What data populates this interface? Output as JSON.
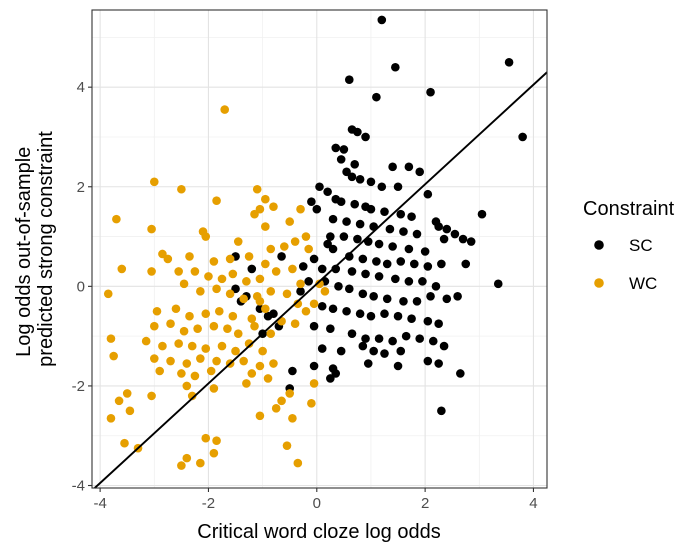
{
  "chart_data": {
    "type": "scatter",
    "xlabel": "Critical word cloze log odds",
    "ylabel_lines": [
      "Log odds out-of-sample",
      "predicted strong constraint"
    ],
    "xlim": [
      -4.15,
      4.25
    ],
    "ylim": [
      -4.05,
      5.55
    ],
    "x_ticks": [
      -4,
      -2,
      0,
      2,
      4
    ],
    "x_tick_labels": [
      "-4",
      "-2",
      "0",
      "2",
      "4"
    ],
    "y_ticks": [
      -4,
      -2,
      0,
      2,
      4
    ],
    "y_tick_labels": [
      "-4",
      "-2",
      "0",
      "2",
      "4"
    ],
    "grid": true,
    "legend": {
      "title": "Constraint",
      "position": "right",
      "entries": [
        {
          "label": "SC",
          "color": "#000000"
        },
        {
          "label": "WC",
          "color": "#E69F00"
        }
      ]
    },
    "fit_line": {
      "slope": 1.0,
      "intercept": 0.05
    },
    "series": [
      {
        "name": "SC",
        "color": "#000000",
        "points": [
          [
            1.2,
            5.35
          ],
          [
            1.45,
            4.4
          ],
          [
            3.55,
            4.5
          ],
          [
            0.6,
            4.15
          ],
          [
            2.1,
            3.9
          ],
          [
            1.1,
            3.8
          ],
          [
            3.8,
            3.0
          ],
          [
            0.65,
            3.15
          ],
          [
            0.75,
            3.1
          ],
          [
            0.9,
            3.0
          ],
          [
            0.35,
            2.78
          ],
          [
            0.5,
            2.75
          ],
          [
            0.45,
            2.55
          ],
          [
            0.7,
            2.45
          ],
          [
            1.4,
            2.4
          ],
          [
            1.7,
            2.4
          ],
          [
            1.9,
            2.3
          ],
          [
            0.55,
            2.3
          ],
          [
            0.65,
            2.2
          ],
          [
            0.8,
            2.15
          ],
          [
            1.0,
            2.1
          ],
          [
            1.2,
            2.0
          ],
          [
            1.5,
            2.0
          ],
          [
            2.05,
            1.85
          ],
          [
            0.2,
            1.9
          ],
          [
            0.35,
            1.75
          ],
          [
            0.45,
            1.7
          ],
          [
            0.7,
            1.65
          ],
          [
            0.9,
            1.6
          ],
          [
            1.0,
            1.55
          ],
          [
            1.25,
            1.5
          ],
          [
            1.55,
            1.45
          ],
          [
            1.75,
            1.4
          ],
          [
            2.2,
            1.3
          ],
          [
            0.3,
            1.35
          ],
          [
            0.55,
            1.3
          ],
          [
            0.8,
            1.25
          ],
          [
            1.05,
            1.2
          ],
          [
            1.35,
            1.15
          ],
          [
            1.6,
            1.1
          ],
          [
            1.85,
            1.05
          ],
          [
            2.25,
            1.2
          ],
          [
            2.4,
            1.15
          ],
          [
            0.25,
            1.0
          ],
          [
            0.5,
            1.0
          ],
          [
            0.75,
            0.95
          ],
          [
            0.95,
            0.9
          ],
          [
            1.15,
            0.85
          ],
          [
            1.4,
            0.8
          ],
          [
            1.7,
            0.75
          ],
          [
            2.0,
            0.7
          ],
          [
            2.35,
            0.95
          ],
          [
            2.55,
            1.05
          ],
          [
            2.7,
            0.95
          ],
          [
            2.85,
            0.9
          ],
          [
            3.05,
            1.45
          ],
          [
            0.3,
            0.75
          ],
          [
            0.6,
            0.6
          ],
          [
            0.85,
            0.55
          ],
          [
            1.1,
            0.5
          ],
          [
            1.3,
            0.45
          ],
          [
            1.55,
            0.5
          ],
          [
            1.8,
            0.45
          ],
          [
            2.05,
            0.4
          ],
          [
            2.3,
            0.45
          ],
          [
            2.75,
            0.45
          ],
          [
            3.35,
            0.05
          ],
          [
            0.35,
            0.35
          ],
          [
            0.65,
            0.3
          ],
          [
            0.9,
            0.25
          ],
          [
            1.15,
            0.2
          ],
          [
            1.45,
            0.15
          ],
          [
            1.7,
            0.1
          ],
          [
            1.95,
            0.1
          ],
          [
            2.2,
            0.0
          ],
          [
            0.15,
            0.1
          ],
          [
            0.4,
            0.0
          ],
          [
            0.6,
            -0.05
          ],
          [
            0.85,
            -0.15
          ],
          [
            1.05,
            -0.2
          ],
          [
            1.3,
            -0.25
          ],
          [
            1.6,
            -0.3
          ],
          [
            1.85,
            -0.3
          ],
          [
            2.1,
            -0.2
          ],
          [
            2.4,
            -0.25
          ],
          [
            2.6,
            -0.2
          ],
          [
            0.1,
            -0.4
          ],
          [
            0.3,
            -0.45
          ],
          [
            0.55,
            -0.5
          ],
          [
            0.8,
            -0.55
          ],
          [
            1.0,
            -0.6
          ],
          [
            1.25,
            -0.55
          ],
          [
            1.5,
            -0.6
          ],
          [
            1.75,
            -0.65
          ],
          [
            2.05,
            -0.7
          ],
          [
            2.25,
            -0.75
          ],
          [
            -0.05,
            -0.8
          ],
          [
            0.25,
            -0.85
          ],
          [
            0.65,
            -0.95
          ],
          [
            0.9,
            -1.05
          ],
          [
            1.15,
            -1.05
          ],
          [
            1.4,
            -1.1
          ],
          [
            1.65,
            -1.0
          ],
          [
            1.9,
            -1.05
          ],
          [
            2.15,
            -1.1
          ],
          [
            2.35,
            -1.2
          ],
          [
            0.1,
            -1.25
          ],
          [
            0.45,
            -1.3
          ],
          [
            0.85,
            -1.2
          ],
          [
            1.05,
            -1.3
          ],
          [
            1.25,
            -1.35
          ],
          [
            1.55,
            -1.3
          ],
          [
            2.05,
            -1.5
          ],
          [
            2.25,
            -1.55
          ],
          [
            0.95,
            -1.55
          ],
          [
            1.5,
            -1.6
          ],
          [
            0.3,
            -1.65
          ],
          [
            2.65,
            -1.75
          ],
          [
            0.25,
            -1.85
          ],
          [
            -0.45,
            -1.7
          ],
          [
            -0.5,
            -2.05
          ],
          [
            -0.05,
            -1.6
          ],
          [
            0.35,
            -1.75
          ],
          [
            2.3,
            -2.5
          ],
          [
            -1.5,
            0.6
          ],
          [
            -1.2,
            0.35
          ],
          [
            -1.5,
            -0.05
          ],
          [
            -1.3,
            -0.2
          ],
          [
            -1.4,
            -0.3
          ],
          [
            -1.05,
            -0.45
          ],
          [
            -0.9,
            -0.6
          ],
          [
            -1.0,
            -0.95
          ],
          [
            -0.7,
            -0.8
          ],
          [
            -0.8,
            -0.55
          ],
          [
            -0.3,
            -0.1
          ],
          [
            -0.15,
            0.1
          ],
          [
            -0.25,
            0.4
          ],
          [
            -0.65,
            0.6
          ],
          [
            -0.1,
            1.7
          ],
          [
            -0.05,
            0.55
          ],
          [
            0.1,
            0.35
          ],
          [
            0.2,
            0.85
          ],
          [
            0.0,
            1.55
          ],
          [
            0.05,
            2.0
          ]
        ]
      },
      {
        "name": "WC",
        "color": "#E69F00",
        "points": [
          [
            -1.7,
            3.55
          ],
          [
            -3.0,
            2.1
          ],
          [
            -2.5,
            1.95
          ],
          [
            -1.85,
            1.72
          ],
          [
            -1.1,
            1.95
          ],
          [
            -0.95,
            1.75
          ],
          [
            -0.8,
            1.6
          ],
          [
            -1.05,
            1.55
          ],
          [
            -1.15,
            1.45
          ],
          [
            -0.3,
            1.55
          ],
          [
            -3.7,
            1.35
          ],
          [
            -2.1,
            1.1
          ],
          [
            -3.05,
            1.15
          ],
          [
            -2.05,
            1.0
          ],
          [
            -1.45,
            0.9
          ],
          [
            -0.95,
            1.2
          ],
          [
            -0.5,
            1.3
          ],
          [
            -0.2,
            1.0
          ],
          [
            -2.85,
            0.65
          ],
          [
            -2.75,
            0.55
          ],
          [
            -2.35,
            0.6
          ],
          [
            -1.9,
            0.5
          ],
          [
            -1.6,
            0.55
          ],
          [
            -1.25,
            0.6
          ],
          [
            -0.85,
            0.75
          ],
          [
            -0.6,
            0.8
          ],
          [
            -0.4,
            0.9
          ],
          [
            -0.15,
            0.75
          ],
          [
            -3.6,
            0.35
          ],
          [
            -3.05,
            0.3
          ],
          [
            -2.55,
            0.3
          ],
          [
            -2.25,
            0.3
          ],
          [
            -2.0,
            0.2
          ],
          [
            -1.75,
            0.15
          ],
          [
            -1.55,
            0.25
          ],
          [
            -1.3,
            0.1
          ],
          [
            -1.05,
            0.15
          ],
          [
            -0.75,
            0.3
          ],
          [
            -0.45,
            0.35
          ],
          [
            -0.3,
            0.05
          ],
          [
            -3.85,
            -0.15
          ],
          [
            -2.45,
            0.05
          ],
          [
            -2.15,
            -0.1
          ],
          [
            -1.85,
            -0.05
          ],
          [
            -1.6,
            -0.15
          ],
          [
            -1.35,
            -0.25
          ],
          [
            -1.1,
            -0.2
          ],
          [
            -0.85,
            -0.1
          ],
          [
            -0.55,
            -0.15
          ],
          [
            -0.35,
            -0.35
          ],
          [
            -2.95,
            -0.5
          ],
          [
            -2.6,
            -0.45
          ],
          [
            -2.35,
            -0.6
          ],
          [
            -2.05,
            -0.55
          ],
          [
            -1.8,
            -0.5
          ],
          [
            -1.55,
            -0.6
          ],
          [
            -1.2,
            -0.65
          ],
          [
            -0.95,
            -0.45
          ],
          [
            -0.65,
            -0.7
          ],
          [
            -3.0,
            -0.8
          ],
          [
            -2.7,
            -0.75
          ],
          [
            -2.45,
            -0.9
          ],
          [
            -2.2,
            -0.85
          ],
          [
            -1.9,
            -0.8
          ],
          [
            -1.65,
            -0.85
          ],
          [
            -1.45,
            -0.95
          ],
          [
            -1.15,
            -0.8
          ],
          [
            -0.85,
            -0.95
          ],
          [
            -3.8,
            -1.05
          ],
          [
            -3.15,
            -1.1
          ],
          [
            -2.85,
            -1.2
          ],
          [
            -2.55,
            -1.15
          ],
          [
            -2.3,
            -1.2
          ],
          [
            -2.05,
            -1.25
          ],
          [
            -1.75,
            -1.2
          ],
          [
            -1.5,
            -1.3
          ],
          [
            -1.25,
            -1.15
          ],
          [
            -1.0,
            -1.3
          ],
          [
            -3.75,
            -1.4
          ],
          [
            -3.0,
            -1.45
          ],
          [
            -2.7,
            -1.5
          ],
          [
            -2.4,
            -1.55
          ],
          [
            -2.15,
            -1.45
          ],
          [
            -1.85,
            -1.5
          ],
          [
            -1.6,
            -1.55
          ],
          [
            -1.35,
            -1.5
          ],
          [
            -1.05,
            -1.6
          ],
          [
            -0.8,
            -1.55
          ],
          [
            -2.9,
            -1.7
          ],
          [
            -2.5,
            -1.75
          ],
          [
            -2.25,
            -1.8
          ],
          [
            -1.95,
            -1.7
          ],
          [
            -1.2,
            -1.75
          ],
          [
            -0.9,
            -1.85
          ],
          [
            -3.65,
            -2.3
          ],
          [
            -3.45,
            -2.5
          ],
          [
            -3.5,
            -2.15
          ],
          [
            -3.05,
            -2.2
          ],
          [
            -2.4,
            -2.0
          ],
          [
            -2.3,
            -2.2
          ],
          [
            -1.9,
            -2.05
          ],
          [
            -1.3,
            -1.95
          ],
          [
            -0.5,
            -2.15
          ],
          [
            -0.75,
            -2.45
          ],
          [
            -0.45,
            -2.65
          ],
          [
            -0.1,
            -2.35
          ],
          [
            -3.8,
            -2.65
          ],
          [
            -1.05,
            -2.6
          ],
          [
            -0.65,
            -2.3
          ],
          [
            -3.55,
            -3.15
          ],
          [
            -3.3,
            -3.25
          ],
          [
            -2.05,
            -3.05
          ],
          [
            -1.85,
            -3.1
          ],
          [
            -2.4,
            -3.45
          ],
          [
            -2.5,
            -3.6
          ],
          [
            -2.15,
            -3.55
          ],
          [
            -1.9,
            -3.35
          ],
          [
            -0.55,
            -3.2
          ],
          [
            -0.35,
            -3.55
          ],
          [
            -0.05,
            -0.35
          ],
          [
            0.05,
            0.05
          ],
          [
            0.15,
            -0.1
          ],
          [
            -0.2,
            -0.5
          ],
          [
            -0.4,
            -0.75
          ],
          [
            -0.95,
            0.45
          ],
          [
            -1.05,
            -0.3
          ],
          [
            -0.05,
            -1.95
          ]
        ]
      }
    ]
  }
}
